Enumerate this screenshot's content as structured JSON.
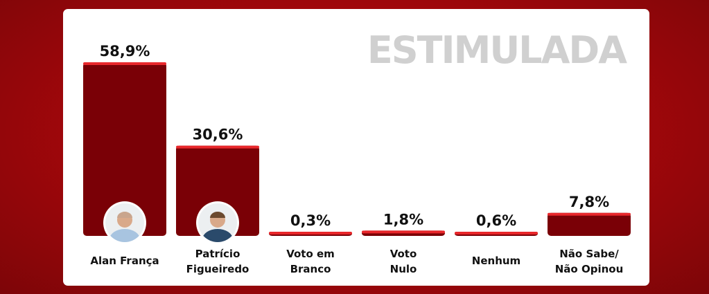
{
  "header": {
    "tag": "ESTIMULADA"
  },
  "colors": {
    "bar": "#7a0006",
    "bar_top": "#e8272b",
    "background": "#a0070b"
  },
  "chart_data": {
    "type": "bar",
    "title": "",
    "categories": [
      [
        "Alan França"
      ],
      [
        "Patrício",
        "Figueiredo"
      ],
      [
        "Voto em",
        "Branco"
      ],
      [
        "Voto",
        "Nulo"
      ],
      [
        "Nenhum"
      ],
      [
        "Não Sabe/",
        "Não Opinou"
      ]
    ],
    "values": [
      58.9,
      30.6,
      0.3,
      1.8,
      0.6,
      7.8
    ],
    "value_labels": [
      "58,9%",
      "30,6%",
      "0,3%",
      "1,8%",
      "0,6%",
      "7,8%"
    ],
    "avatars": [
      "person-photo",
      "person-photo",
      null,
      null,
      null,
      null
    ],
    "ylim": [
      0,
      58.9
    ],
    "grid": false,
    "legend": "none"
  }
}
